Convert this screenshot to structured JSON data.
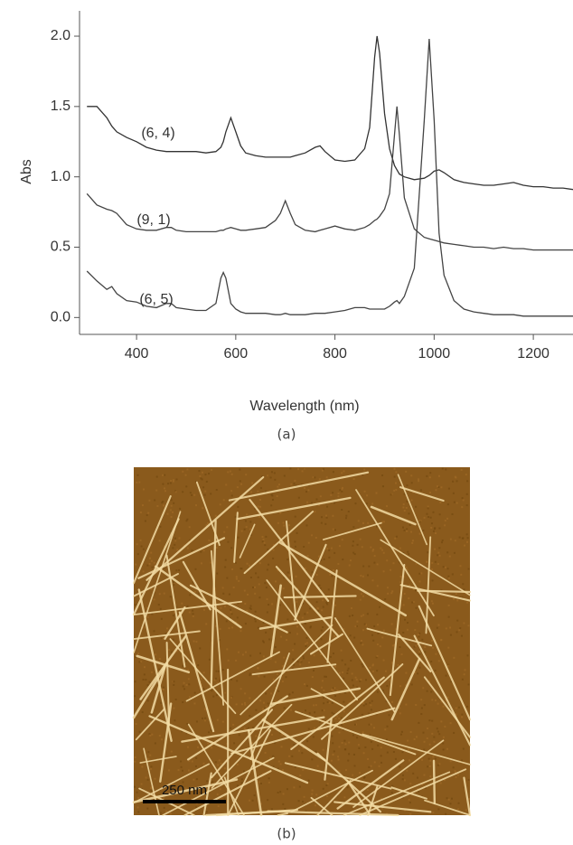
{
  "chart_data": {
    "type": "line",
    "x_label": "Wavelength (nm)",
    "y_label": "Abs",
    "xlim": [
      285,
      1280
    ],
    "ylim": [
      -0.12,
      2.18
    ],
    "xticks": [
      400,
      600,
      800,
      1000,
      1200
    ],
    "yticks": [
      {
        "value": 0,
        "label": "0.0"
      },
      0.5,
      {
        "value": 1,
        "label": "1.0"
      },
      1.5,
      {
        "value": 2,
        "label": "2.0"
      }
    ],
    "x": [
      300,
      320,
      340,
      350,
      360,
      380,
      400,
      420,
      440,
      460,
      470,
      480,
      500,
      520,
      540,
      560,
      570,
      575,
      580,
      590,
      600,
      610,
      620,
      640,
      660,
      680,
      690,
      700,
      710,
      720,
      740,
      760,
      770,
      780,
      800,
      820,
      840,
      860,
      870,
      880,
      885,
      890,
      900,
      910,
      920,
      925,
      930,
      940,
      960,
      980,
      990,
      1000,
      1010,
      1020,
      1040,
      1060,
      1080,
      1100,
      1120,
      1140,
      1160,
      1180,
      1200,
      1220,
      1240,
      1260,
      1280
    ],
    "series": [
      {
        "name": "(6, 4)",
        "color": "#333333",
        "values": [
          1.5,
          1.5,
          1.42,
          1.36,
          1.32,
          1.28,
          1.25,
          1.21,
          1.19,
          1.18,
          1.18,
          1.18,
          1.18,
          1.18,
          1.17,
          1.18,
          1.21,
          1.25,
          1.32,
          1.42,
          1.32,
          1.22,
          1.17,
          1.15,
          1.14,
          1.14,
          1.14,
          1.14,
          1.14,
          1.15,
          1.17,
          1.21,
          1.22,
          1.18,
          1.12,
          1.11,
          1.12,
          1.2,
          1.35,
          1.85,
          2.0,
          1.88,
          1.45,
          1.2,
          1.08,
          1.05,
          1.02,
          1.0,
          0.98,
          0.99,
          1.01,
          1.04,
          1.05,
          1.03,
          0.98,
          0.96,
          0.95,
          0.94,
          0.94,
          0.95,
          0.96,
          0.94,
          0.93,
          0.93,
          0.92,
          0.92,
          0.91
        ]
      },
      {
        "name": "(9, 1)",
        "color": "#444444",
        "values": [
          0.88,
          0.8,
          0.77,
          0.76,
          0.74,
          0.66,
          0.63,
          0.62,
          0.62,
          0.64,
          0.64,
          0.62,
          0.61,
          0.61,
          0.61,
          0.61,
          0.62,
          0.62,
          0.63,
          0.64,
          0.63,
          0.62,
          0.62,
          0.63,
          0.64,
          0.69,
          0.74,
          0.83,
          0.74,
          0.66,
          0.62,
          0.61,
          0.62,
          0.63,
          0.65,
          0.63,
          0.62,
          0.64,
          0.66,
          0.69,
          0.7,
          0.72,
          0.77,
          0.88,
          1.3,
          1.5,
          1.3,
          0.85,
          0.63,
          0.57,
          0.56,
          0.55,
          0.54,
          0.53,
          0.52,
          0.51,
          0.5,
          0.5,
          0.49,
          0.5,
          0.49,
          0.49,
          0.48,
          0.48,
          0.48,
          0.48,
          0.48
        ]
      },
      {
        "name": "(6, 5)",
        "color": "#444444",
        "values": [
          0.33,
          0.26,
          0.2,
          0.22,
          0.17,
          0.12,
          0.11,
          0.08,
          0.07,
          0.1,
          0.1,
          0.07,
          0.06,
          0.05,
          0.05,
          0.1,
          0.28,
          0.32,
          0.28,
          0.1,
          0.06,
          0.04,
          0.03,
          0.03,
          0.03,
          0.02,
          0.02,
          0.03,
          0.02,
          0.02,
          0.02,
          0.03,
          0.03,
          0.03,
          0.04,
          0.05,
          0.07,
          0.07,
          0.06,
          0.06,
          0.06,
          0.06,
          0.06,
          0.08,
          0.11,
          0.12,
          0.1,
          0.15,
          0.35,
          1.4,
          1.98,
          1.4,
          0.6,
          0.3,
          0.12,
          0.06,
          0.04,
          0.03,
          0.02,
          0.02,
          0.02,
          0.01,
          0.01,
          0.01,
          0.01,
          0.01,
          0.01
        ]
      }
    ],
    "caption": "(a)"
  },
  "image": {
    "scale_bar": "250 nm",
    "caption": "(b)"
  }
}
